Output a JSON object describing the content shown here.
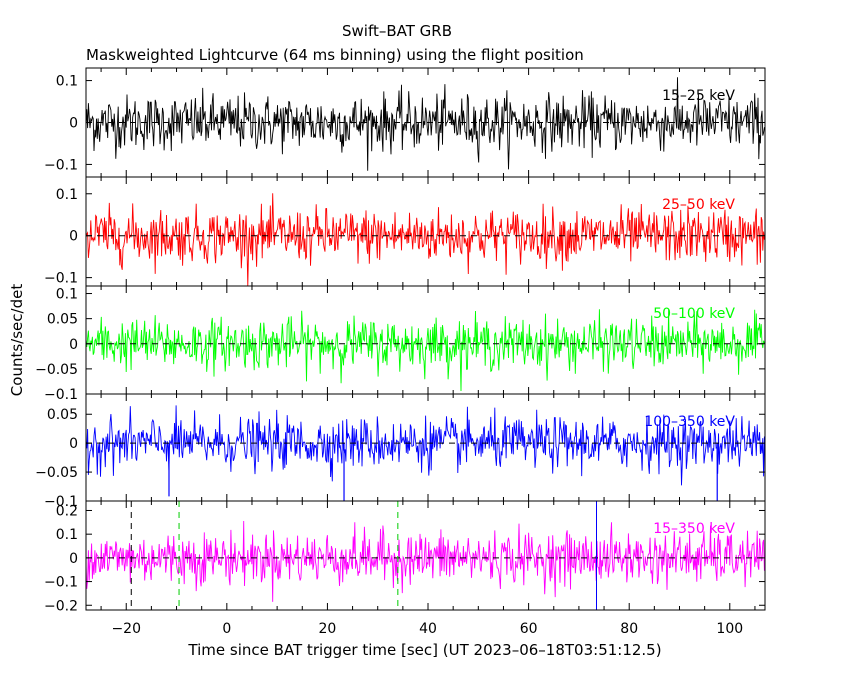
{
  "chart_data": {
    "type": "line",
    "title": "Swift–BAT GRB",
    "subtitle": "Maskweighted Lightcurve (64 ms binning) using the flight position",
    "xlabel": "Time since BAT trigger time [sec] (UT 2023–06–18T03:51:12.5)",
    "ylabel": "Counts/sec/det",
    "xlim": [
      -28,
      107
    ],
    "xticks": [
      -20,
      0,
      20,
      40,
      60,
      80,
      100
    ],
    "xtick_labels": [
      "−20",
      "0",
      "20",
      "40",
      "60",
      "80",
      "100"
    ],
    "bin_size_sec": 0.064,
    "panels": [
      {
        "band": "15–25 keV",
        "color": "#000000",
        "ylim": [
          -0.13,
          0.13
        ],
        "yticks": [
          0.1,
          0,
          -0.1
        ],
        "ytick_labels": [
          "0.1",
          "0",
          "−0.1"
        ],
        "noise_sigma": 0.033,
        "spikes": []
      },
      {
        "band": "25–50 keV",
        "color": "#ff0000",
        "ylim": [
          -0.12,
          0.14
        ],
        "yticks": [
          0.1,
          0,
          -0.1
        ],
        "ytick_labels": [
          "0.1",
          "0",
          "−0.1"
        ],
        "noise_sigma": 0.032,
        "spikes": []
      },
      {
        "band": "50–100 keV",
        "color": "#00ff00",
        "ylim": [
          -0.1,
          0.115
        ],
        "yticks": [
          0.1,
          0.05,
          0,
          -0.05,
          -0.1
        ],
        "ytick_labels": [
          "0.1",
          "0.05",
          "0",
          "−0.05",
          "−0.1"
        ],
        "noise_sigma": 0.025,
        "spikes": []
      },
      {
        "band": "100–350 keV",
        "color": "#0000ff",
        "ylim": [
          -0.1,
          0.085
        ],
        "yticks": [
          0.05,
          0,
          -0.05,
          -0.1
        ],
        "ytick_labels": [
          "0.05",
          "0",
          "−0.05",
          "−0.1"
        ],
        "noise_sigma": 0.022,
        "spikes": [
          {
            "x": -11.5,
            "y": -0.092
          },
          {
            "x": 23.3,
            "y": -0.1
          },
          {
            "x": 97.5,
            "y": -0.1
          }
        ]
      },
      {
        "band": "15–350 keV",
        "color": "#ff00ff",
        "ylim": [
          -0.22,
          0.24
        ],
        "yticks": [
          0.2,
          0.1,
          0,
          -0.1,
          -0.2
        ],
        "ytick_labels": [
          "0.2",
          "0.1",
          "0",
          "−0.1",
          "−0.2"
        ],
        "noise_sigma": 0.055,
        "spikes": [],
        "markers": [
          {
            "x": -19,
            "color": "#000000",
            "style": "dashed"
          },
          {
            "x": -9.5,
            "color": "#00cc00",
            "style": "dashed"
          },
          {
            "x": 34,
            "color": "#00cc00",
            "style": "dashed"
          },
          {
            "x": 73.5,
            "color": "#0000ff",
            "style": "solid"
          }
        ]
      }
    ],
    "grid": false,
    "zero_line": "dashed"
  }
}
